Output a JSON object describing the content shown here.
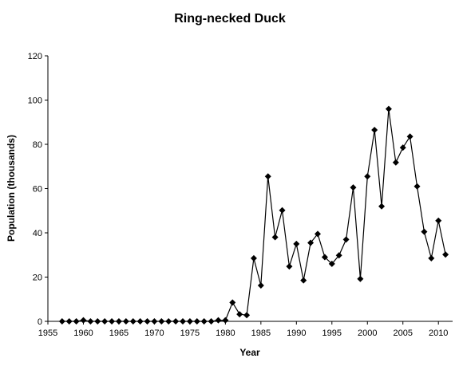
{
  "chart_data": {
    "type": "line",
    "title": "Ring-necked Duck",
    "xlabel": "Year",
    "ylabel": "Population (thousands)",
    "xlim": [
      1955,
      2012
    ],
    "ylim": [
      0,
      120
    ],
    "xticks": [
      1955,
      1960,
      1965,
      1970,
      1975,
      1980,
      1985,
      1990,
      1995,
      2000,
      2005,
      2010
    ],
    "yticks": [
      0,
      20,
      40,
      60,
      80,
      100,
      120
    ],
    "grid": false,
    "legend": "none",
    "marker": "diamond",
    "color": "#000000",
    "series": [
      {
        "x": [
          1957,
          1958,
          1959,
          1960,
          1961,
          1962,
          1963,
          1964,
          1965,
          1966,
          1967,
          1968,
          1969,
          1970,
          1971,
          1972,
          1973,
          1974,
          1975,
          1976,
          1977,
          1978,
          1979,
          1980,
          1981,
          1982,
          1983,
          1984,
          1985,
          1986,
          1987,
          1988,
          1989,
          1990,
          1991,
          1992,
          1993,
          1994,
          1995,
          1996,
          1997,
          1998,
          1999,
          2000,
          2001,
          2002,
          2003,
          2004,
          2005,
          2006,
          2007,
          2008,
          2009,
          2010,
          2011
        ],
        "values": [
          0,
          0,
          0,
          0.5,
          0,
          0,
          0,
          0,
          0,
          0,
          0,
          0,
          0,
          0,
          0,
          0,
          0,
          0,
          0,
          0,
          0,
          0,
          0.5,
          0.5,
          8.5,
          3.2,
          2.8,
          28.5,
          16.2,
          65.5,
          38,
          50.2,
          24.8,
          35,
          18.5,
          35.5,
          39.5,
          29,
          26,
          29.8,
          37,
          60.5,
          19.2,
          65.5,
          86.5,
          52,
          96,
          71.8,
          78.5,
          83.5,
          61,
          40.5,
          28.5,
          45.5,
          30.2
        ]
      }
    ]
  }
}
